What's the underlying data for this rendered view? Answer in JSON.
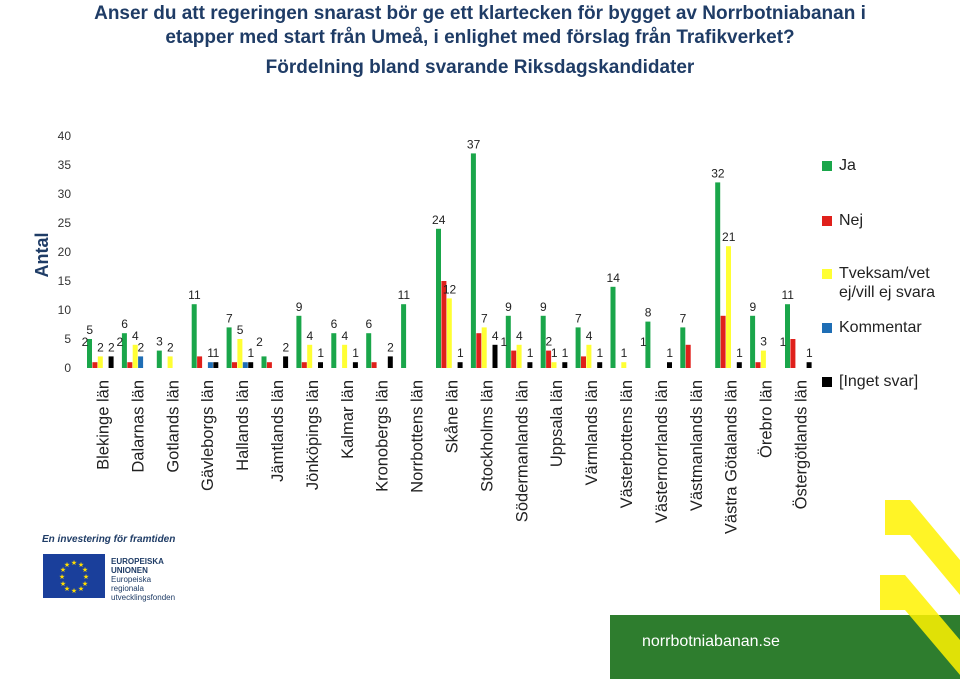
{
  "header": {
    "title_line1": "Anser du att regeringen snarast bör ge ett klartecken för bygget av Norrbotniabanan i",
    "title_line2": "etapper med start från Umeå, i enlighet med förslag från Trafikverket?",
    "subtitle": "Fördelning bland svarande Riksdagskandidater"
  },
  "chart_data": {
    "type": "bar",
    "ylabel": "Antal",
    "ylim": [
      0,
      40
    ],
    "yticks": [
      "0",
      "5",
      "10",
      "15",
      "20",
      "25",
      "30",
      "35",
      "40"
    ],
    "categories": [
      "Blekinge län",
      "Dalarnas län",
      "Gotlands län",
      "Gävleborgs län",
      "Hallands län",
      "Jämtlands län",
      "Jönköpings län",
      "Kalmar län",
      "Kronobergs län",
      "Norrbottens län",
      "Skåne län",
      "Stockholms län",
      "Södermanlands län",
      "Uppsala län",
      "Värmlands län",
      "Västerbottens län",
      "Västernorrlands län",
      "Västmanlands län",
      "Västra Götalands län",
      "Örebro län",
      "Östergötlands län"
    ],
    "series": [
      {
        "name": "Ja",
        "color": "#1aa64a",
        "values": [
          5,
          6,
          3,
          11,
          7,
          2,
          9,
          6,
          6,
          11,
          24,
          37,
          9,
          9,
          7,
          14,
          8,
          7,
          32,
          9,
          11
        ],
        "labels": [
          "5",
          "6",
          "3",
          "11",
          "7",
          "",
          "9",
          "6",
          "6",
          "11",
          "24",
          "37",
          "9",
          "9",
          "7",
          "14",
          "8",
          "7",
          "32",
          "9",
          "11"
        ]
      },
      {
        "name": "Nej",
        "color": "#e0201b",
        "values": [
          1,
          1,
          0,
          2,
          1,
          1,
          1,
          0,
          1,
          0,
          15,
          6,
          3,
          3,
          2,
          0,
          0,
          4,
          9,
          1,
          5
        ],
        "labels": [
          "",
          "",
          "",
          "",
          "",
          "",
          "",
          "",
          "",
          "",
          "",
          "",
          "",
          "2",
          "",
          "",
          "",
          "",
          "",
          "",
          ""
        ]
      },
      {
        "name": "Tveksam/vet ej/vill ej svara",
        "color": "#ffff33",
        "values": [
          2,
          4,
          2,
          0,
          5,
          0,
          4,
          4,
          0,
          0,
          12,
          7,
          4,
          1,
          4,
          1,
          0,
          0,
          21,
          3,
          0
        ],
        "labels": [
          "2",
          "4",
          "2",
          "",
          "5",
          "",
          "4",
          "4",
          "",
          "",
          "12",
          "7",
          "4",
          "1",
          "4",
          "1",
          "",
          "",
          "21",
          "3",
          ""
        ]
      },
      {
        "name": "Kommentar",
        "color": "#1f6eb5",
        "values": [
          0,
          2,
          0,
          1,
          1,
          0,
          0,
          0,
          0,
          0,
          0,
          0,
          0,
          0,
          0,
          0,
          0,
          0,
          0,
          0,
          0
        ],
        "labels": [
          "",
          "2",
          "",
          "1",
          "",
          "",
          "",
          "",
          "",
          "",
          "",
          "",
          "",
          "",
          "",
          "",
          "",
          "",
          "",
          "",
          ""
        ]
      },
      {
        "name": "[Inget svar]",
        "color": "#000000",
        "values": [
          2,
          0,
          0,
          1,
          1,
          2,
          1,
          1,
          2,
          0,
          1,
          4,
          1,
          1,
          1,
          0,
          1,
          0,
          1,
          0,
          1
        ],
        "labels": [
          "2",
          "",
          "",
          "1",
          "1",
          "2",
          "1",
          "1",
          "2",
          "",
          "1",
          "4",
          "1",
          "1",
          "1",
          "",
          "1",
          "",
          "1",
          "",
          "1"
        ]
      }
    ],
    "extra_labels": [
      {
        "category": 0,
        "text": "2"
      },
      {
        "category": 1,
        "text": "2"
      },
      {
        "category": 5,
        "text": "2"
      },
      {
        "category": 12,
        "text": "1"
      },
      {
        "category": 16,
        "text": "1"
      },
      {
        "category": 20,
        "text": "1"
      }
    ],
    "legend_position": "right"
  },
  "footer": {
    "investing_text": "En investering för framtiden",
    "eu_lines": [
      "EUROPEISKA",
      "UNIONEN",
      "Europeiska",
      "regionala",
      "utvecklingsfonden"
    ],
    "site": "norrbotniabanan.se"
  }
}
